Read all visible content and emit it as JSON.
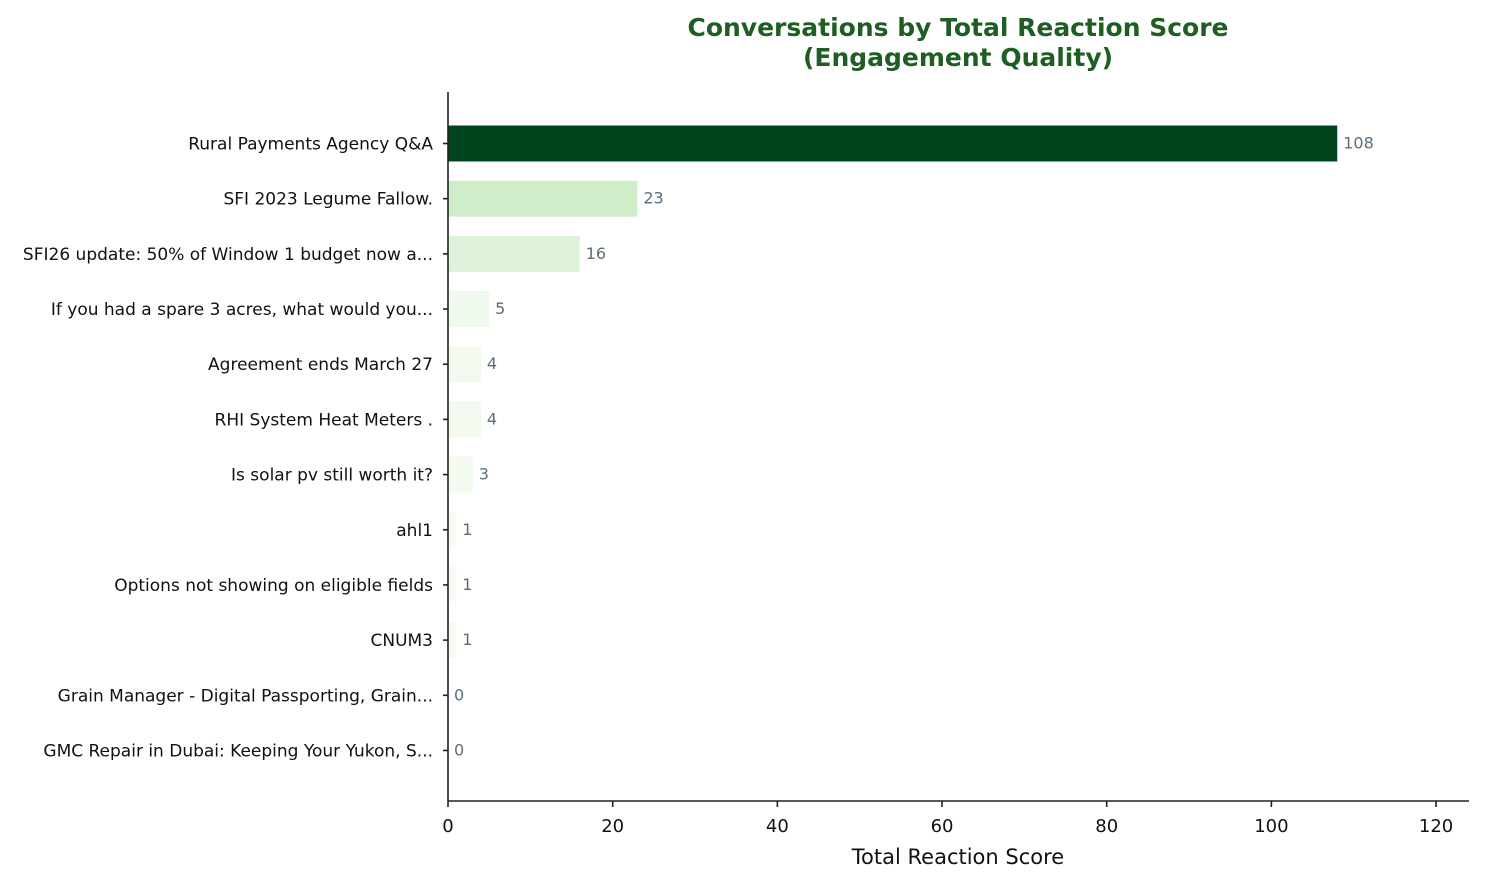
{
  "chart_data": {
    "type": "bar",
    "orientation": "horizontal",
    "title_lines": [
      "Conversations by Total Reaction Score",
      "(Engagement Quality)"
    ],
    "xlabel": "Total Reaction Score",
    "ylabel": "",
    "xlim": [
      0,
      124
    ],
    "xticks": [
      0,
      20,
      40,
      60,
      80,
      100,
      120
    ],
    "grid": false,
    "categories": [
      "Rural Payments Agency Q&A",
      "SFI 2023 Legume Fallow.",
      "SFI26 update: 50% of Window 1 budget now a...",
      "If you had a spare 3 acres, what would you...",
      "Agreement ends March 27",
      "RHI System Heat Meters .",
      "Is solar pv still worth it?",
      "ahl1",
      "Options not showing on eligible fields",
      "CNUM3",
      "Grain Manager - Digital Passporting, Grain...",
      "GMC Repair in Dubai: Keeping Your Yukon, S..."
    ],
    "values": [
      108,
      23,
      16,
      5,
      4,
      4,
      3,
      1,
      1,
      1,
      0,
      0
    ],
    "colors": {
      "title": "#1e5e23",
      "value_label": "#5a6e7a",
      "bar_low": "#f7fcf5",
      "bar_high": "#00441b"
    }
  }
}
